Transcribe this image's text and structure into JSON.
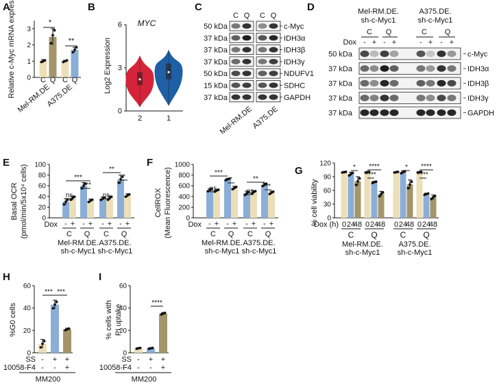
{
  "colors": {
    "cream": "#ecdfb8",
    "tan": "#a4956a",
    "blue": "#8aaed8",
    "red": "#d5243a",
    "darkblue": "#1e5fa5"
  },
  "panels": {
    "A": {
      "label": "A",
      "ylabel": "Relative c-Myc mRNA expression",
      "yticks": [
        "0",
        "1",
        "2",
        "3"
      ],
      "groups": [
        "Mel-RM.DE",
        "A375.DE"
      ],
      "cond": [
        "C",
        "Q"
      ],
      "sig": [
        "*",
        "**"
      ]
    },
    "B": {
      "label": "B",
      "title": "MYC",
      "ylabel": "Log2 Expression",
      "yticks": [
        "0",
        "3",
        "6"
      ],
      "xticks": [
        "2",
        "1"
      ]
    },
    "C": {
      "label": "C",
      "cols": [
        "C",
        "Q",
        "C",
        "Q"
      ],
      "kdas": [
        "50 kDa",
        "37 kDa",
        "37 kDa",
        "37 kDa",
        "50 kDa",
        "15 kDa",
        "37 kDa"
      ],
      "proteins": [
        "c-Myc",
        "IDH3α",
        "IDH3β",
        "IDH3γ",
        "NDUFV1",
        "SDHC",
        "GAPDH"
      ],
      "lines": [
        "Mel-RM.DE",
        "A375.DE"
      ]
    },
    "D": {
      "label": "D",
      "line1a": "Mel-RM.DE.",
      "line1b": "sh-c-Myc1",
      "line2a": "A375.DE.",
      "line2b": "sh-c-Myc1",
      "cond": [
        "C",
        "Q",
        "C",
        "Q"
      ],
      "dox": "Dox",
      "doxsigns": [
        "-",
        "+",
        "-",
        "+",
        "-",
        "+",
        "-",
        "+"
      ],
      "kdas": [
        "50 kDa",
        "37 kDa",
        "37 kDa",
        "37 kDa",
        "37 kDa"
      ],
      "proteins": [
        "c-Myc",
        "IDH3α",
        "IDH3β",
        "IDH3γ",
        "GAPDH"
      ]
    },
    "E": {
      "label": "E",
      "ylabel1": "Basal OCR",
      "ylabel2": "(pmol/min/5x10⁴ cells)",
      "yticks": [
        "0",
        "20",
        "40",
        "60",
        "80",
        "100"
      ],
      "sig": [
        "***",
        "***",
        "ns",
        "**",
        "*",
        "ns"
      ],
      "dox": "Dox",
      "signs": [
        "-",
        "+",
        "-",
        "+",
        "-",
        "+",
        "-",
        "+"
      ],
      "cond": [
        "C",
        "Q",
        "C",
        "Q"
      ],
      "line1a": "Mel-RM.DE.",
      "line1b": "sh-c-Myc1",
      "line2a": "A375.DE.",
      "line2b": "sh-c-Myc1"
    },
    "F": {
      "label": "F",
      "ylabel1": "CellROX",
      "ylabel2": "(Mean Fluorescence)",
      "yticks": [
        "0",
        "200",
        "400",
        "600",
        "800",
        "1000"
      ],
      "sig": [
        "***",
        "*",
        "ns",
        "**",
        "**",
        "ns"
      ],
      "dox": "Dox",
      "signs": [
        "-",
        "+",
        "-",
        "+",
        "-",
        "+",
        "-",
        "+"
      ],
      "cond": [
        "C",
        "Q",
        "C",
        "Q"
      ],
      "line1a": "Mel-RM.DE.",
      "line1b": "sh-c-Myc1",
      "line2a": "A375.DE.",
      "line2b": "sh-c-Myc1"
    },
    "G": {
      "label": "G",
      "ylabel": "% cell viability",
      "yticks": [
        "0",
        "30",
        "60",
        "90",
        "120"
      ],
      "sig": [
        "*",
        "****",
        "****",
        "*",
        "****",
        "****"
      ],
      "dox": "Dox (h)",
      "hours": [
        "0",
        "24",
        "48",
        "0",
        "24",
        "48",
        "0",
        "24",
        "48",
        "0",
        "24",
        "48"
      ],
      "cond": [
        "C",
        "Q",
        "C",
        "Q"
      ],
      "line1a": "Mel-RM.DE.",
      "line1b": "sh-c-Myc1",
      "line2a": "A375.DE.",
      "line2b": "sh-c-Myc1"
    },
    "H": {
      "label": "H",
      "ylabel": "%G0 cells",
      "yticks": [
        "0",
        "20",
        "40",
        "60"
      ],
      "sig": [
        "***",
        "***"
      ],
      "row1": "SS",
      "row2": "10058-F4",
      "r1signs": [
        "-",
        "+",
        "+"
      ],
      "r2signs": [
        "-",
        "-",
        "+"
      ],
      "cellline": "MM200"
    },
    "I": {
      "label": "I",
      "ylabel1": "% cells with",
      "ylabel2": "PI uptake",
      "yticks": [
        "0",
        "20",
        "40",
        "60"
      ],
      "sig": [
        "****"
      ],
      "row1": "SS",
      "row2": "10058-F4",
      "r1signs": [
        "-",
        "+",
        "+"
      ],
      "r2signs": [
        "-",
        "-",
        "+"
      ],
      "cellline": "MM200"
    }
  },
  "chart_data": [
    {
      "panel": "A",
      "type": "bar",
      "categories": [
        "Mel-RM.DE C",
        "Mel-RM.DE Q",
        "A375.DE C",
        "A375.DE Q"
      ],
      "values": [
        1.0,
        2.5,
        1.0,
        1.7
      ],
      "errors": [
        0.1,
        0.5,
        0.05,
        0.15
      ],
      "points": [
        [
          0.95,
          1.0,
          1.05
        ],
        [
          2.1,
          2.6,
          2.9
        ],
        [
          0.95,
          1.0,
          1.05
        ],
        [
          1.55,
          1.7,
          1.85
        ]
      ],
      "ylim": [
        0,
        3.5
      ]
    },
    {
      "panel": "B",
      "type": "violin",
      "categories": [
        "2",
        "1"
      ],
      "median": [
        2.2,
        2.7
      ],
      "iqr": [
        [
          1.8,
          2.7
        ],
        [
          2.2,
          3.3
        ]
      ],
      "range": [
        [
          0.3,
          3.8
        ],
        [
          0.4,
          4.2
        ]
      ],
      "ylim": [
        0,
        6
      ]
    },
    {
      "panel": "E",
      "type": "bar",
      "categories": [
        "Mel C -",
        "Mel C +",
        "Mel Q -",
        "Mel Q +",
        "A375 C -",
        "A375 C +",
        "A375 Q -",
        "A375 Q +"
      ],
      "values": [
        30,
        37,
        60,
        32,
        36,
        37,
        72,
        42
      ],
      "errors": [
        6,
        4,
        6,
        3,
        3,
        4,
        8,
        3
      ],
      "ylim": [
        0,
        100
      ]
    },
    {
      "panel": "F",
      "type": "bar",
      "categories": [
        "Mel C -",
        "Mel C +",
        "Mel Q -",
        "Mel Q +",
        "A375 C -",
        "A375 C +",
        "A375 Q -",
        "A375 Q +"
      ],
      "values": [
        520,
        510,
        720,
        560,
        460,
        480,
        620,
        470
      ],
      "errors": [
        30,
        25,
        20,
        30,
        40,
        30,
        30,
        30
      ],
      "ylim": [
        0,
        1000
      ]
    },
    {
      "panel": "G",
      "type": "bar",
      "categories": [
        "Mel C 0",
        "Mel C 24",
        "Mel C 48",
        "Mel Q 0",
        "Mel Q 24",
        "Mel Q 48",
        "A375 C 0",
        "A375 C 24",
        "A375 C 48",
        "A375 Q 0",
        "A375 Q 24",
        "A375 Q 48"
      ],
      "values": [
        100,
        96,
        80,
        100,
        78,
        52,
        100,
        100,
        73,
        100,
        52,
        45
      ],
      "errors": [
        1,
        4,
        10,
        1,
        2,
        6,
        1,
        3,
        10,
        1,
        2,
        5
      ],
      "ylim": [
        0,
        120
      ]
    },
    {
      "panel": "H",
      "type": "bar",
      "categories": [
        "SS- F4-",
        "SS+ F4-",
        "SS+ F4+"
      ],
      "values": [
        8,
        43,
        21
      ],
      "errors": [
        4,
        4,
        1
      ],
      "ylim": [
        0,
        60
      ]
    },
    {
      "panel": "I",
      "type": "bar",
      "categories": [
        "SS- F4-",
        "SS+ F4-",
        "SS+ F4+"
      ],
      "values": [
        4,
        4,
        35
      ],
      "errors": [
        0.5,
        0.5,
        1
      ],
      "ylim": [
        0,
        60
      ]
    }
  ]
}
